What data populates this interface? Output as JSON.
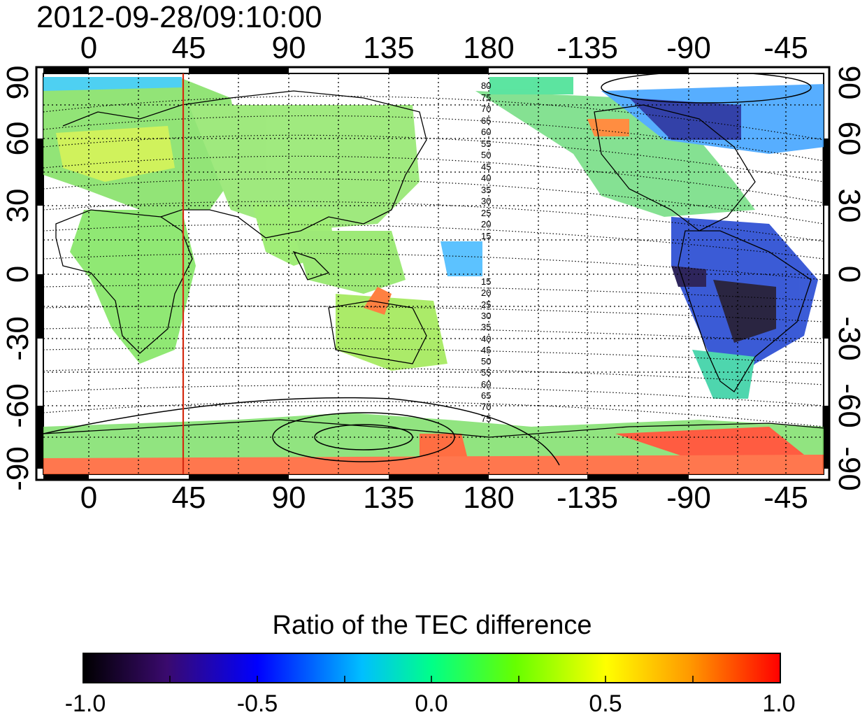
{
  "timestamp": "2012-09-28/09:10:00",
  "map": {
    "lon_ticks": [
      "0",
      "45",
      "90",
      "135",
      "180",
      "-135",
      "-90",
      "-45"
    ],
    "lat_ticks_left": [
      "90",
      "60",
      "30",
      "0",
      "-30",
      "-60",
      "-90"
    ],
    "lat_ticks_right": [
      "90",
      "60",
      "30",
      "0",
      "-30",
      "-60",
      "-90"
    ],
    "contour_labels_north": [
      "80",
      "75",
      "70",
      "65",
      "60",
      "55",
      "50",
      "45",
      "40",
      "35",
      "30",
      "25",
      "20",
      "15"
    ],
    "contour_labels_south": [
      "15",
      "20",
      "25",
      "30",
      "35",
      "40",
      "45",
      "50",
      "55",
      "60",
      "65",
      "70",
      "75"
    ],
    "marker_longitude": "45",
    "marker_color": "#d42a10"
  },
  "colorbar": {
    "title": "Ratio of the TEC difference",
    "ticks": [
      "-1.0",
      "-0.5",
      "0.0",
      "0.5",
      "1.0"
    ],
    "colors": [
      "#000000",
      "#3a0a6e",
      "#0000ff",
      "#00e5ff",
      "#00ff44",
      "#ffff00",
      "#ff9900",
      "#ff0000"
    ]
  }
}
